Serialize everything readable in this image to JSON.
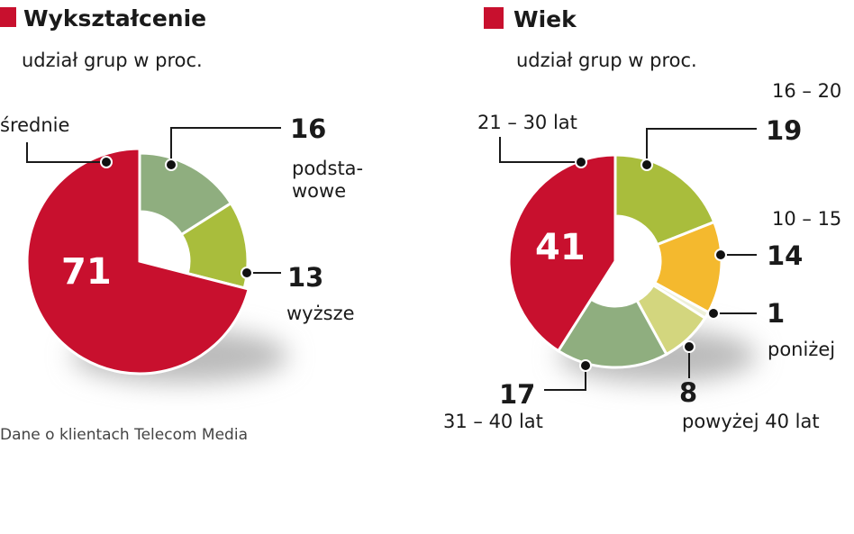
{
  "chart_data": [
    {
      "type": "pie",
      "title": "Wykształcenie",
      "subtitle": "udział grup w proc.",
      "categories": [
        "podstawowe",
        "wyższe",
        "średnie"
      ],
      "category_labels": [
        "podsta-",
        "wowe",
        "wyższe",
        "średnie"
      ],
      "values": [
        16,
        13,
        71
      ],
      "colors": [
        "#8fae7f",
        "#a9bd3c",
        "#c8102e"
      ]
    },
    {
      "type": "pie",
      "title": "Wiek",
      "subtitle": "udział grup w proc.",
      "categories": [
        "16 – 20",
        "10 – 15",
        "poniżej",
        "powyżej 40 lat",
        "31 – 40 lat",
        "21 – 30 lat"
      ],
      "values": [
        19,
        14,
        1,
        8,
        17,
        41
      ],
      "colors": [
        "#a9bd3c",
        "#f4b92e",
        "#eef0d8",
        "#d3d67e",
        "#8fae7f",
        "#c8102e"
      ]
    }
  ],
  "source": "Dane o klientach Telecom Media",
  "accent_color": "#c8102e"
}
